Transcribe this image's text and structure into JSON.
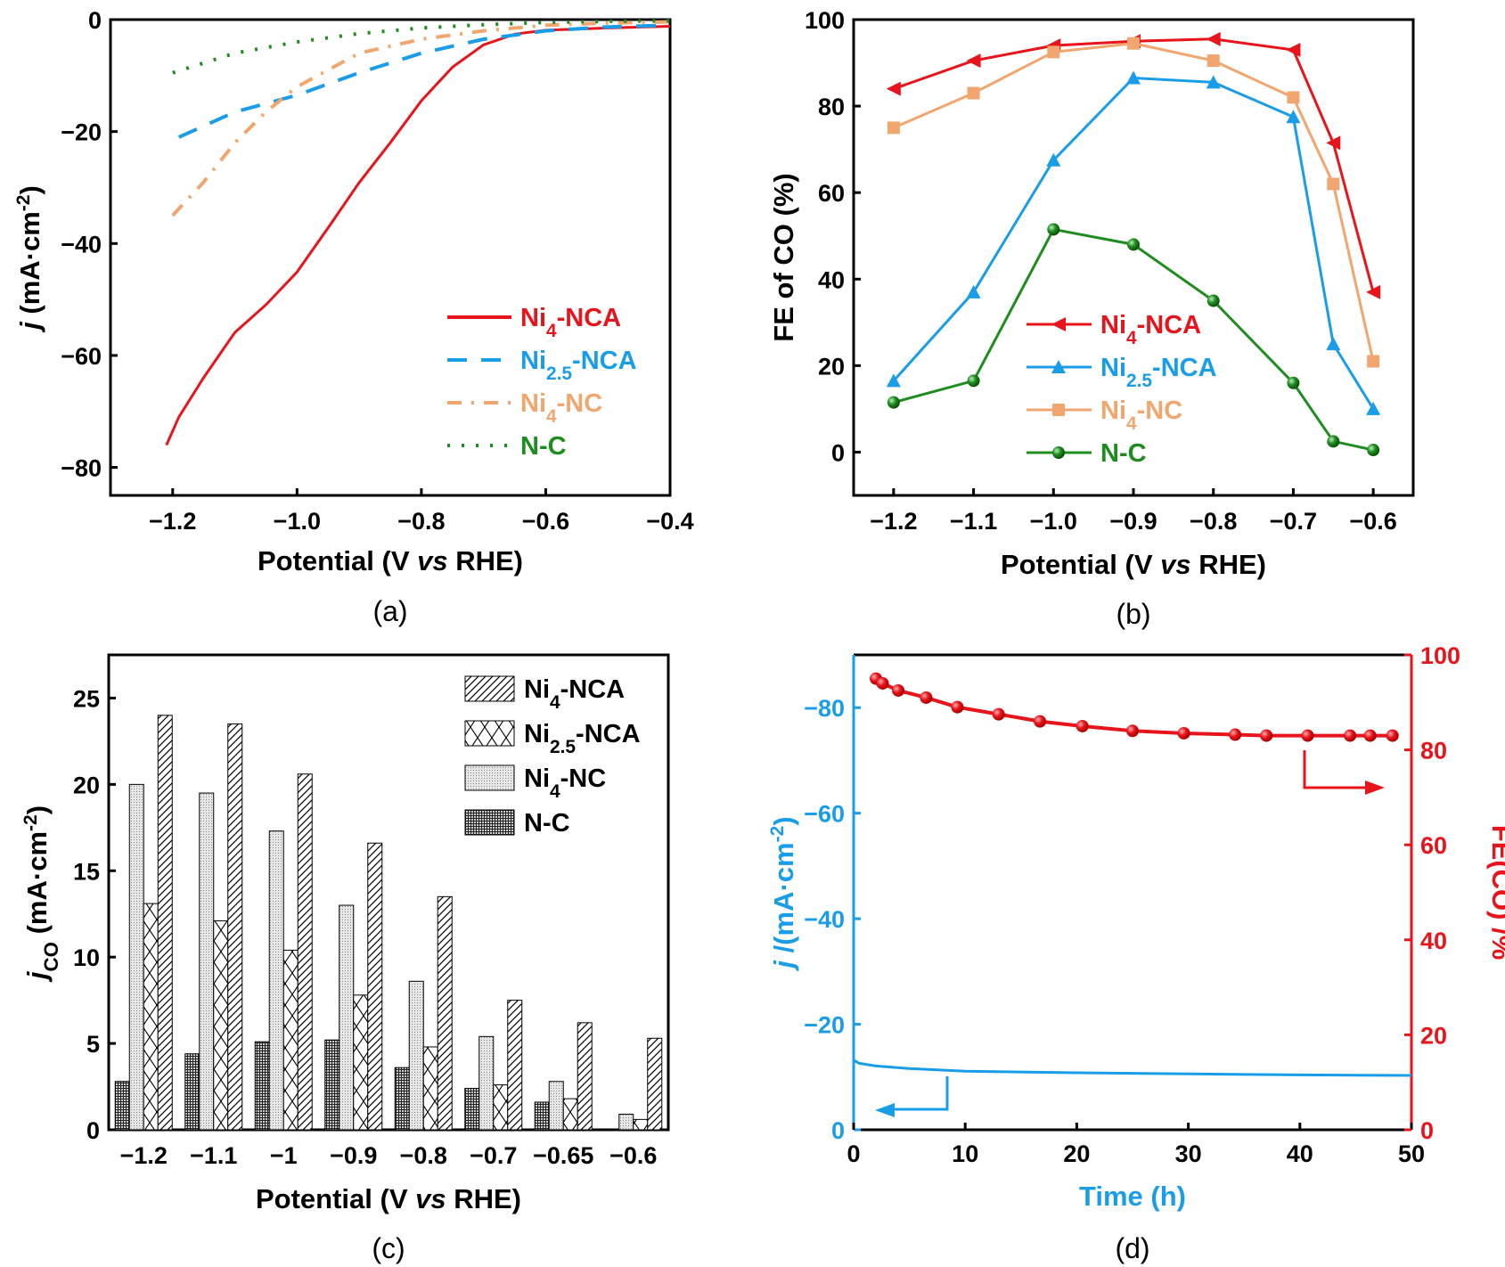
{
  "colors": {
    "ni4_nca": "#e8141c",
    "ni25_nca": "#1a9de8",
    "ni4_nc": "#f0a66e",
    "n_c": "#1e8c1e",
    "axis": "#000000"
  },
  "chart_data": [
    {
      "panel": "(a)",
      "type": "line",
      "xlabel": "Potential (V *vs* RHE)",
      "ylabel": "*j* (mA·cm^{-2})",
      "xlim": [
        -1.3,
        -0.4
      ],
      "ylim": [
        -85,
        0
      ],
      "xticks": [
        -1.2,
        -1.0,
        -0.8,
        -0.6,
        -0.4
      ],
      "xtick_labels": [
        "−1.2",
        "−1.0",
        "−0.8",
        "−0.6",
        "−0.4"
      ],
      "yticks": [
        0,
        -20,
        -40,
        -60,
        -80
      ],
      "ytick_labels": [
        "0",
        "−20",
        "−40",
        "−60",
        "−80"
      ],
      "grid": false,
      "legend": "bottom-right",
      "series": [
        {
          "name": "Ni_{4}-NCA",
          "style": "solid",
          "color_key": "ni4_nca",
          "x": [
            -1.21,
            -1.19,
            -1.15,
            -1.1,
            -1.05,
            -1.0,
            -0.95,
            -0.9,
            -0.85,
            -0.8,
            -0.75,
            -0.7,
            -0.65,
            -0.6,
            -0.5,
            -0.4
          ],
          "y": [
            -76,
            -72,
            -65,
            -56,
            -50,
            -44,
            -37,
            -30,
            -22,
            -14.5,
            -8.5,
            -4.5,
            -2.6,
            -1.9,
            -1.5,
            -1.2
          ]
        },
        {
          "name": "Ni_{2.5}-NCA",
          "style": "dashed",
          "color_key": "ni25_nca",
          "x": [
            -1.19,
            -1.1,
            -1.0,
            -0.9,
            -0.8,
            -0.7,
            -0.6,
            -0.5,
            -0.4
          ],
          "y": [
            -21,
            -16.5,
            -13.5,
            -9.5,
            -6,
            -3.5,
            -2,
            -1.3,
            -1
          ]
        },
        {
          "name": "Ni_{4}-NC",
          "style": "dashdot",
          "color_key": "ni4_nc",
          "x": [
            -1.2,
            -1.15,
            -1.1,
            -1.05,
            -1.0,
            -0.9,
            -0.8,
            -0.7,
            -0.6,
            -0.5,
            -0.4
          ],
          "y": [
            -35,
            -29,
            -22,
            -16.5,
            -12,
            -6,
            -3.5,
            -2,
            -1,
            -0.6,
            -0.4
          ]
        },
        {
          "name": "N-C",
          "style": "dotted",
          "color_key": "n_c",
          "x": [
            -1.2,
            -1.1,
            -1.0,
            -0.9,
            -0.8,
            -0.7,
            -0.6,
            -0.5,
            -0.4
          ],
          "y": [
            -9.5,
            -6,
            -4,
            -2.5,
            -1.5,
            -0.9,
            -0.5,
            -0.3,
            -0.2
          ]
        }
      ]
    },
    {
      "panel": "(b)",
      "type": "line",
      "xlabel": "Potential (V *vs* RHE)",
      "ylabel": "FE of CO  (%)",
      "xlim": [
        -1.25,
        -0.55
      ],
      "ylim": [
        -10,
        100
      ],
      "xticks": [
        -1.2,
        -1.1,
        -1.0,
        -0.9,
        -0.8,
        -0.7,
        -0.6
      ],
      "xtick_labels": [
        "−1.2",
        "−1.1",
        "−1.0",
        "−0.9",
        "−0.8",
        "−0.7",
        "−0.6"
      ],
      "yticks": [
        0,
        20,
        40,
        60,
        80,
        100
      ],
      "ytick_labels": [
        "0",
        "20",
        "40",
        "60",
        "80",
        "100"
      ],
      "grid": false,
      "legend": "center-left",
      "x": [
        -1.2,
        -1.1,
        -1.0,
        -0.9,
        -0.8,
        -0.7,
        -0.65,
        -0.6
      ],
      "series": [
        {
          "name": "Ni_{4}-NCA",
          "marker": "triangle-left",
          "color_key": "ni4_nca",
          "values": [
            84,
            90.5,
            94,
            95,
            95.5,
            93,
            71.5,
            37
          ]
        },
        {
          "name": "Ni_{2.5}-NCA",
          "marker": "triangle-up",
          "color_key": "ni25_nca",
          "values": [
            16.5,
            37,
            67.5,
            86.5,
            85.5,
            77.5,
            25,
            10
          ]
        },
        {
          "name": "Ni_{4}-NC",
          "marker": "square",
          "color_key": "ni4_nc",
          "values": [
            75,
            83,
            92.5,
            94.5,
            90.5,
            82,
            62,
            21
          ]
        },
        {
          "name": "N-C",
          "marker": "circle",
          "color_key": "n_c",
          "values": [
            11.5,
            16.5,
            51.5,
            48,
            35,
            16,
            2.5,
            0.5
          ]
        }
      ]
    },
    {
      "panel": "(c)",
      "type": "bar",
      "xlabel": "Potential (V *vs* RHE)",
      "ylabel": "*j*_{CO} (mA·cm^{-2})",
      "ylim": [
        0,
        27.5
      ],
      "yticks": [
        0,
        5,
        10,
        15,
        20,
        25
      ],
      "ytick_labels": [
        "0",
        "5",
        "10",
        "15",
        "20",
        "25"
      ],
      "categories": [
        "−1.2",
        "−1.1",
        "−1",
        "−0.9",
        "−0.8",
        "−0.7",
        "−0.65",
        "−0.6"
      ],
      "grid": false,
      "legend": "top-right",
      "legend_order": [
        3,
        2,
        1,
        0
      ],
      "series": [
        {
          "name": "N-C",
          "pattern": "grid",
          "values": [
            2.8,
            4.4,
            5.1,
            5.2,
            3.6,
            2.4,
            1.6,
            0
          ]
        },
        {
          "name": "Ni_{4}-NC",
          "pattern": "dots",
          "values": [
            20,
            19.5,
            17.3,
            13,
            8.6,
            5.4,
            2.8,
            0.9
          ]
        },
        {
          "name": "Ni_{2.5}-NCA",
          "pattern": "crosshatch",
          "values": [
            13.1,
            12.1,
            10.4,
            7.8,
            4.8,
            2.6,
            1.8,
            0.6
          ]
        },
        {
          "name": "Ni_{4}-NCA",
          "pattern": "diagonal",
          "values": [
            24,
            23.5,
            20.6,
            16.6,
            13.5,
            7.5,
            6.2,
            5.3
          ]
        }
      ]
    },
    {
      "panel": "(d)",
      "type": "line",
      "xlabel": "Time (h)",
      "ylabel": "*j* /(mA·cm^{-2})",
      "ylabel_right": "FE(CO) /%",
      "xlim": [
        0,
        50
      ],
      "ylim": [
        0,
        -90
      ],
      "ylim_right": [
        0,
        100
      ],
      "xticks": [
        0,
        10,
        20,
        30,
        40,
        50
      ],
      "xtick_labels": [
        "0",
        "10",
        "20",
        "30",
        "40",
        "50"
      ],
      "yticks": [
        0,
        -20,
        -40,
        -60,
        -80
      ],
      "ytick_labels": [
        "0",
        "−20",
        "−40",
        "−60",
        "−80"
      ],
      "yticks_right": [
        0,
        20,
        40,
        60,
        80,
        100
      ],
      "ytick_labels_right": [
        "0",
        "20",
        "40",
        "60",
        "80",
        "100"
      ],
      "grid": false,
      "series": [
        {
          "axis": "left",
          "color_key": "ni25_nca",
          "style": "solid",
          "x": [
            0,
            0.5,
            2,
            5,
            10,
            20,
            30,
            40,
            50
          ],
          "y": [
            -13.2,
            -12.6,
            -12.1,
            -11.6,
            -11.1,
            -10.8,
            -10.6,
            -10.4,
            -10.3
          ]
        },
        {
          "axis": "right",
          "color_key": "ni4_nca",
          "marker": "circle",
          "x": [
            2,
            2.6,
            4,
            6.5,
            9.3,
            13,
            16.7,
            20.5,
            25,
            29.6,
            34.2,
            37,
            40.7,
            44.5,
            46.3,
            48.3
          ],
          "y": [
            95,
            94,
            92.5,
            91,
            89,
            87.5,
            86,
            85,
            84,
            83.5,
            83.2,
            83,
            83,
            83,
            83,
            83
          ]
        }
      ]
    }
  ]
}
